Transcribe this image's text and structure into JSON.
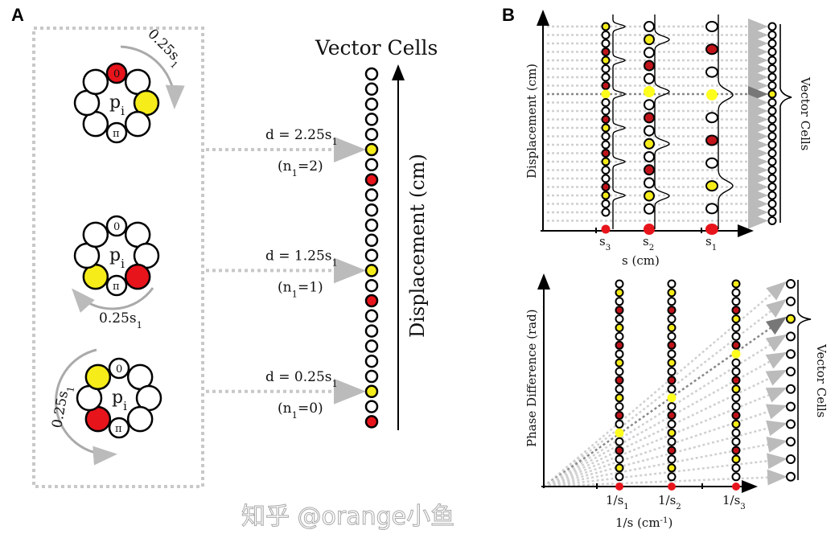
{
  "panel_a": {
    "label": "A",
    "title": "Vector Cells",
    "axis_label": "Displacement (cm)",
    "column": "wwwwwYwRwwwwwYwRwwwwwYwR",
    "rings": [
      {
        "center": "p",
        "center_sub": "i",
        "zero": "0",
        "pi": "π",
        "red": 0,
        "yellow": 2,
        "arc_label": "0.25s",
        "arc_sub": "1"
      },
      {
        "center": "p",
        "center_sub": "i",
        "zero": "0",
        "pi": "π",
        "red": 3,
        "yellow": 5,
        "arc_label": "0.25s",
        "arc_sub": "1"
      },
      {
        "center": "p",
        "center_sub": "i",
        "zero": "0",
        "pi": "π",
        "red": 5,
        "yellow": 7,
        "arc_label": "0.25s",
        "arc_sub": "1"
      }
    ],
    "annotations": [
      {
        "d": "d = 2.25s",
        "d_sub": "1",
        "n_pre": "(n",
        "n_sub": "1",
        "n_post": "=2)"
      },
      {
        "d": "d = 1.25s",
        "d_sub": "1",
        "n_pre": "(n",
        "n_sub": "1",
        "n_post": "=1)"
      },
      {
        "d": "d = 0.25s",
        "d_sub": "1",
        "n_pre": "(n",
        "n_sub": "1",
        "n_post": "=0)"
      }
    ]
  },
  "panel_b": {
    "label": "B",
    "top": {
      "ylabel": "Displacement (cm)",
      "xlabel": "s (cm)",
      "vector_label": "Vector Cells",
      "columns": [
        {
          "name": "s",
          "sub": "3",
          "seq": "YwwRYwwRHwwRYwwRYwwRYww"
        },
        {
          "name": "s",
          "sub": "2",
          "seq": "wYwRwHwRwYwRwYw"
        },
        {
          "name": "s",
          "sub": "1",
          "seq": "wRwHwRwYw"
        }
      ]
    },
    "bottom": {
      "ylabel": "Phase Difference (rad)",
      "xlabel": "1/s (cm",
      "xlabel_sup": "-1",
      "xlabel_end": ")",
      "vector_label": "Vector Cells",
      "vector_count": 12,
      "vector_active": 2,
      "columns": [
        {
          "name": "1/s",
          "sub": "1",
          "seq": "wYwRwYwRwYwRwYwRwHwRwYw"
        },
        {
          "name": "1/s",
          "sub": "2",
          "seq": "wYwRwYwRwYwRwHwRwYwRwYw"
        },
        {
          "name": "1/s",
          "sub": "3",
          "seq": "YwwRYwwRHwwRYwwRYwwRYww"
        }
      ]
    }
  },
  "watermark": "知乎 @orange小鱼",
  "colors": {
    "red": "#e8141b",
    "dark_red": "#c0141a",
    "yellow": "#f5ec1a",
    "bright_yellow": "#ffff1e",
    "arrow_gray": "#b8b8b8"
  }
}
